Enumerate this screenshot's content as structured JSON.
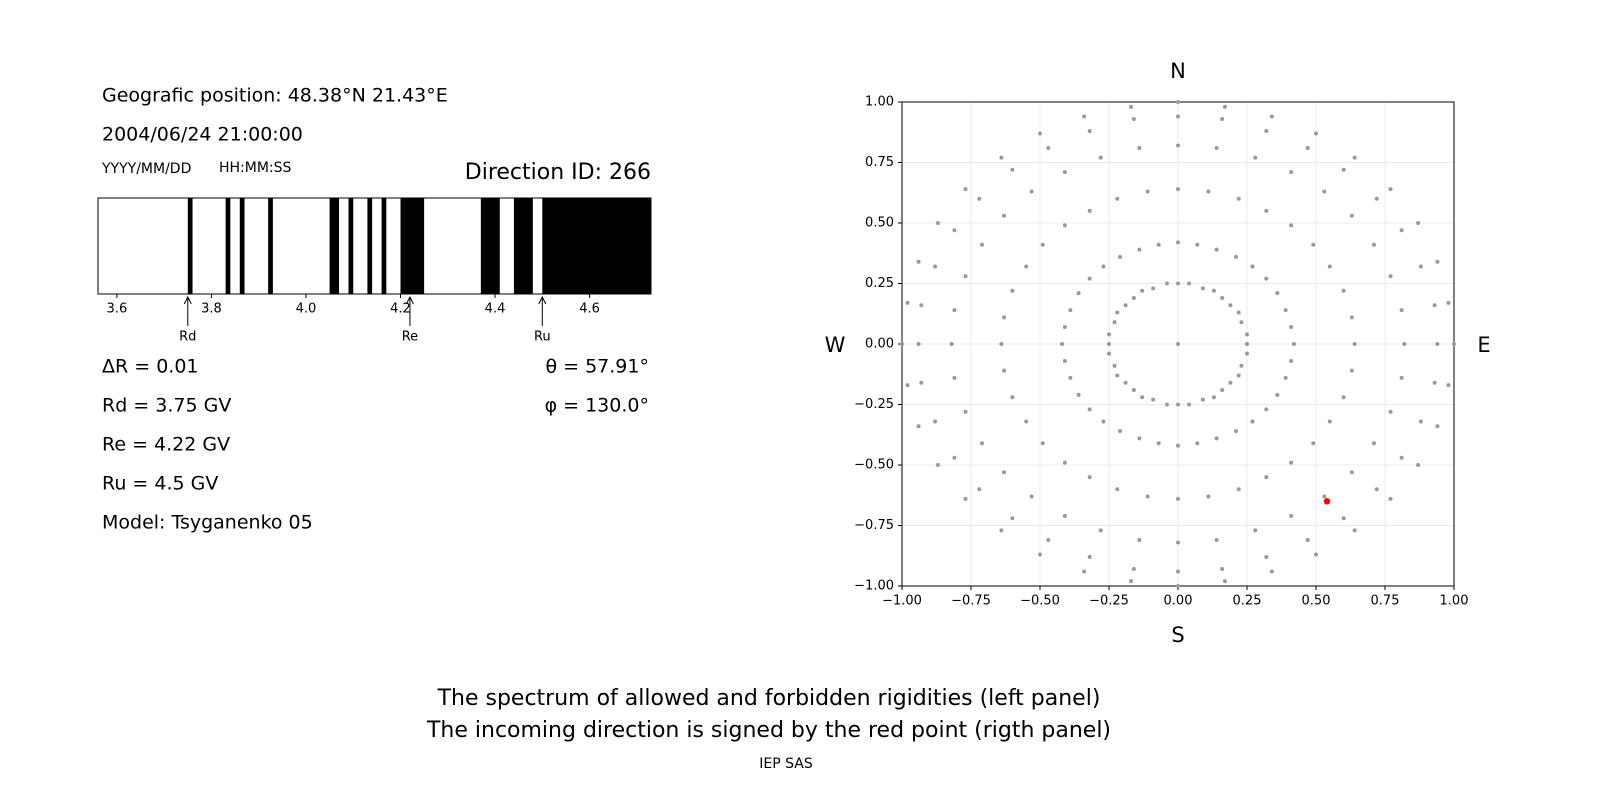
{
  "header": {
    "position": "Geografic position: 48.38°N 21.43°E",
    "datetime": "2004/06/24 21:00:00",
    "date_format": "YYYY/MM/DD",
    "time_format": "HH:MM:SS",
    "direction_id": "Direction ID: 266"
  },
  "parameters": {
    "delta_r": "ΔR = 0.01",
    "rd": "Rd = 3.75 GV",
    "re": "Re = 4.22 GV",
    "ru": "Ru = 4.5 GV",
    "model": "Model: Tsyganenko 05",
    "theta": "θ = 57.91°",
    "phi": "φ = 130.0°"
  },
  "caption": [
    "The spectrum of allowed and forbidden rigidities (left panel)",
    "The incoming direction is signed by the red point (rigth panel)"
  ],
  "credit": "IEP SAS",
  "chart_data": [
    {
      "type": "broken_bar",
      "color": "#000000",
      "bands": [
        [
          3.75,
          3.76
        ],
        [
          3.83,
          3.84
        ],
        [
          3.86,
          3.87
        ],
        [
          3.92,
          3.93
        ],
        [
          4.05,
          4.07
        ],
        [
          4.09,
          4.1
        ],
        [
          4.13,
          4.14
        ],
        [
          4.16,
          4.17
        ],
        [
          4.2,
          4.25
        ],
        [
          4.37,
          4.41
        ],
        [
          4.44,
          4.48
        ],
        [
          4.5,
          4.73
        ]
      ],
      "xlim": [
        3.56,
        4.73
      ],
      "xticks": [
        3.6,
        3.8,
        {
          "value": 4,
          "label": "4.0"
        },
        4.2,
        4.4,
        4.6
      ],
      "annotations": [
        {
          "label": "Rd",
          "x": 3.75
        },
        {
          "label": "Re",
          "x": 4.22
        },
        {
          "label": "Ru",
          "x": 4.5
        }
      ]
    },
    {
      "type": "scatter",
      "grid": true,
      "compass": {
        "north": "N",
        "south": "S",
        "west": "W",
        "east": "E"
      },
      "xlim": [
        -1,
        1
      ],
      "ylim": [
        -1,
        1
      ],
      "xticks": [
        {
          "value": -1,
          "label": "−1.00"
        },
        {
          "value": -0.75,
          "label": "−0.75"
        },
        {
          "value": -0.5,
          "label": "−0.50"
        },
        {
          "value": -0.25,
          "label": "−0.25"
        },
        {
          "value": 0,
          "label": "0.00"
        },
        {
          "value": 0.25,
          "label": "0.25"
        },
        {
          "value": 0.5,
          "label": "0.50"
        },
        {
          "value": 0.75,
          "label": "0.75"
        },
        {
          "value": 1,
          "label": "1.00"
        }
      ],
      "yticks": [
        {
          "value": -1,
          "label": "−1.00"
        },
        {
          "value": -0.75,
          "label": "−0.75"
        },
        {
          "value": -0.5,
          "label": "−0.50"
        },
        {
          "value": -0.25,
          "label": "−0.25"
        },
        {
          "value": 0,
          "label": "0.00"
        },
        {
          "value": 0.25,
          "label": "0.25"
        },
        {
          "value": 0.5,
          "label": "0.50"
        },
        {
          "value": 0.75,
          "label": "0.75"
        },
        {
          "value": 1,
          "label": "1.00"
        }
      ],
      "series": [
        {
          "color": "#999999",
          "x": [
            0
          ],
          "y": [
            0
          ]
        },
        {
          "color": "#999999",
          "x": [
            0,
            0.04,
            0.09,
            0.13,
            0.16,
            0.19,
            0.22,
            0.23,
            0.25,
            0.25,
            0.25,
            0.23,
            0.22,
            0.19,
            0.16,
            0.13,
            0.09,
            0.04,
            0,
            -0.04,
            -0.09,
            -0.13,
            -0.16,
            -0.19,
            -0.22,
            -0.23,
            -0.25,
            -0.25,
            -0.25,
            -0.23,
            -0.22,
            -0.19,
            -0.16,
            -0.13,
            -0.09,
            -0.04
          ],
          "y": [
            0.25,
            0.25,
            0.23,
            0.22,
            0.19,
            0.16,
            0.13,
            0.09,
            0.04,
            0,
            -0.04,
            -0.09,
            -0.13,
            -0.16,
            -0.19,
            -0.22,
            -0.23,
            -0.25,
            -0.25,
            -0.25,
            -0.23,
            -0.22,
            -0.19,
            -0.16,
            -0.13,
            -0.09,
            -0.04,
            0,
            0.04,
            0.09,
            0.13,
            0.16,
            0.19,
            0.22,
            0.23,
            0.25
          ]
        },
        {
          "color": "#999999",
          "x": [
            0,
            0.07,
            0.14,
            0.21,
            0.27,
            0.32,
            0.36,
            0.39,
            0.41,
            0.42,
            0.41,
            0.39,
            0.36,
            0.32,
            0.27,
            0.21,
            0.14,
            0.07,
            0,
            -0.07,
            -0.14,
            -0.21,
            -0.27,
            -0.32,
            -0.36,
            -0.39,
            -0.41,
            -0.42,
            -0.41,
            -0.39,
            -0.36,
            -0.32,
            -0.27,
            -0.21,
            -0.14,
            -0.07
          ],
          "y": [
            0.42,
            0.41,
            0.39,
            0.36,
            0.32,
            0.27,
            0.21,
            0.14,
            0.07,
            0,
            -0.07,
            -0.14,
            -0.21,
            -0.27,
            -0.32,
            -0.36,
            -0.39,
            -0.41,
            -0.42,
            -0.41,
            -0.39,
            -0.36,
            -0.32,
            -0.27,
            -0.21,
            -0.14,
            -0.07,
            0,
            0.07,
            0.14,
            0.21,
            0.27,
            0.32,
            0.36,
            0.39,
            0.41
          ]
        },
        {
          "color": "#999999",
          "x": [
            0,
            0.11,
            0.22,
            0.32,
            0.41,
            0.49,
            0.55,
            0.6,
            0.63,
            0.64,
            0.63,
            0.6,
            0.55,
            0.49,
            0.41,
            0.32,
            0.22,
            0.11,
            0,
            -0.11,
            -0.22,
            -0.32,
            -0.41,
            -0.49,
            -0.55,
            -0.6,
            -0.63,
            -0.64,
            -0.63,
            -0.6,
            -0.55,
            -0.49,
            -0.41,
            -0.32,
            -0.22,
            -0.11
          ],
          "y": [
            0.64,
            0.63,
            0.6,
            0.55,
            0.49,
            0.41,
            0.32,
            0.22,
            0.11,
            0,
            -0.11,
            -0.22,
            -0.32,
            -0.41,
            -0.49,
            -0.55,
            -0.6,
            -0.63,
            -0.64,
            -0.63,
            -0.6,
            -0.55,
            -0.49,
            -0.41,
            -0.32,
            -0.22,
            -0.11,
            0,
            0.11,
            0.22,
            0.32,
            0.41,
            0.49,
            0.55,
            0.6,
            0.63
          ]
        },
        {
          "color": "#999999",
          "x": [
            0,
            0.14,
            0.28,
            0.41,
            0.53,
            0.63,
            0.71,
            0.77,
            0.81,
            0.82,
            0.81,
            0.77,
            0.71,
            0.63,
            0.53,
            0.41,
            0.28,
            0.14,
            0,
            -0.14,
            -0.28,
            -0.41,
            -0.53,
            -0.63,
            -0.71,
            -0.77,
            -0.81,
            -0.82,
            -0.81,
            -0.77,
            -0.71,
            -0.63,
            -0.53,
            -0.41,
            -0.28,
            -0.14
          ],
          "y": [
            0.82,
            0.81,
            0.77,
            0.71,
            0.63,
            0.53,
            0.41,
            0.28,
            0.14,
            0,
            -0.14,
            -0.28,
            -0.41,
            -0.53,
            -0.63,
            -0.71,
            -0.77,
            -0.81,
            -0.82,
            -0.81,
            -0.77,
            -0.71,
            -0.63,
            -0.53,
            -0.41,
            -0.28,
            -0.14,
            0,
            0.14,
            0.28,
            0.41,
            0.53,
            0.63,
            0.71,
            0.77,
            0.81
          ]
        },
        {
          "color": "#999999",
          "x": [
            0,
            0.16,
            0.32,
            0.47,
            0.6,
            0.72,
            0.81,
            0.88,
            0.93,
            0.94,
            0.93,
            0.88,
            0.81,
            0.72,
            0.6,
            0.47,
            0.32,
            0.16,
            0,
            -0.16,
            -0.32,
            -0.47,
            -0.6,
            -0.72,
            -0.81,
            -0.88,
            -0.93,
            -0.94,
            -0.93,
            -0.88,
            -0.81,
            -0.72,
            -0.6,
            -0.47,
            -0.32,
            -0.16
          ],
          "y": [
            0.94,
            0.93,
            0.88,
            0.81,
            0.72,
            0.6,
            0.47,
            0.32,
            0.16,
            0,
            -0.16,
            -0.32,
            -0.47,
            -0.6,
            -0.72,
            -0.81,
            -0.88,
            -0.93,
            -0.94,
            -0.93,
            -0.88,
            -0.81,
            -0.72,
            -0.6,
            -0.47,
            -0.32,
            -0.16,
            0,
            0.16,
            0.32,
            0.47,
            0.6,
            0.72,
            0.81,
            0.88,
            0.93
          ]
        },
        {
          "color": "#999999",
          "x": [
            0,
            0.17,
            0.34,
            0.5,
            0.64,
            0.77,
            0.87,
            0.94,
            0.98,
            1,
            0.98,
            0.94,
            0.87,
            0.77,
            0.64,
            0.5,
            0.34,
            0.17,
            0,
            -0.17,
            -0.34,
            -0.5,
            -0.64,
            -0.77,
            -0.87,
            -0.94,
            -0.98,
            -1,
            -0.98,
            -0.94,
            -0.87,
            -0.77,
            -0.64,
            -0.5,
            -0.34,
            -0.17
          ],
          "y": [
            1,
            0.98,
            0.94,
            0.87,
            0.77,
            0.64,
            0.5,
            0.34,
            0.17,
            0,
            -0.17,
            -0.34,
            -0.5,
            -0.64,
            -0.77,
            -0.87,
            -0.94,
            -0.98,
            -1,
            -0.98,
            -0.94,
            -0.87,
            -0.77,
            -0.64,
            -0.5,
            -0.34,
            -0.17,
            0,
            0.17,
            0.34,
            0.5,
            0.64,
            0.77,
            0.87,
            0.94,
            0.98
          ]
        },
        {
          "color": "#ff0000",
          "x": [
            0.54
          ],
          "y": [
            -0.65
          ]
        }
      ]
    }
  ]
}
